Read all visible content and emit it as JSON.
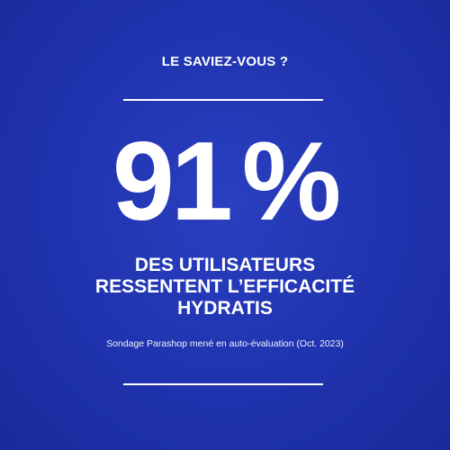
{
  "kicker": "LE SAVIEZ-VOUS ?",
  "stat": {
    "number": "91",
    "unit": "%"
  },
  "headline": {
    "line1": "DES UTILISATEURS",
    "line2": "RESSENTENT L’EFFICACITÉ",
    "line3": "HYDRATIS"
  },
  "footnote": "Sondage Parashop mené en auto-évaluation (Oct. 2023)",
  "colors": {
    "background": "#1f33ae",
    "text": "#ffffff"
  }
}
